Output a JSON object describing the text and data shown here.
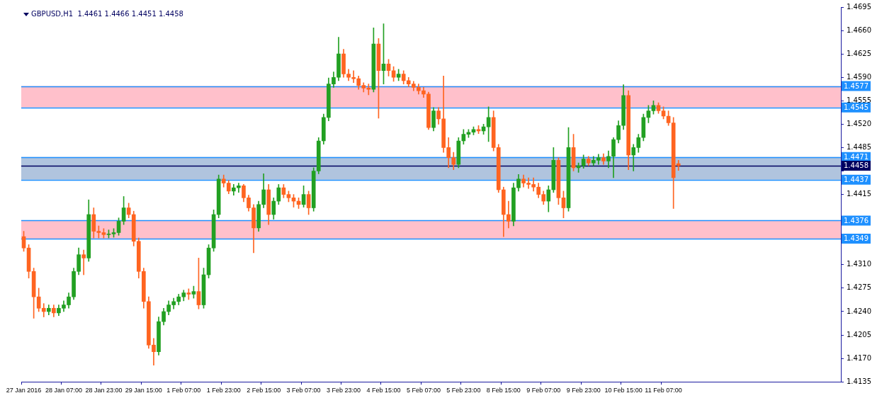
{
  "chart_data": {
    "type": "candlestick",
    "title": "GBPUSD,H1  1.4461 1.4466 1.4451 1.4458",
    "categories": [
      "27 Jan 2016",
      null,
      null,
      null,
      null,
      null,
      null,
      null,
      "28 Jan 07:00",
      null,
      null,
      null,
      null,
      null,
      null,
      null,
      "28 Jan 23:00",
      null,
      null,
      null,
      null,
      null,
      null,
      null,
      "29 Jan 15:00",
      null,
      null,
      null,
      null,
      null,
      null,
      null,
      "1 Feb 07:00",
      null,
      null,
      null,
      null,
      null,
      null,
      null,
      "1 Feb 23:00",
      null,
      null,
      null,
      null,
      null,
      null,
      null,
      "2 Feb 15:00",
      null,
      null,
      null,
      null,
      null,
      null,
      null,
      "3 Feb 07:00",
      null,
      null,
      null,
      null,
      null,
      null,
      null,
      "3 Feb 23:00",
      null,
      null,
      null,
      null,
      null,
      null,
      null,
      "4 Feb 15:00",
      null,
      null,
      null,
      null,
      null,
      null,
      null,
      "5 Feb 07:00",
      null,
      null,
      null,
      null,
      null,
      null,
      null,
      "5 Feb 23:00",
      null,
      null,
      null,
      null,
      null,
      null,
      null,
      "8 Feb 15:00",
      null,
      null,
      null,
      null,
      null,
      null,
      null,
      "9 Feb 07:00",
      null,
      null,
      null,
      null,
      null,
      null,
      null,
      "9 Feb 23:00",
      null,
      null,
      null,
      null,
      null,
      null,
      null,
      "10 Feb 15:00",
      null,
      null,
      null,
      null,
      null,
      null,
      null,
      "11 Feb 07:00",
      null,
      null,
      null,
      null,
      null,
      null,
      null,
      null,
      null,
      null,
      null,
      null,
      null,
      null,
      null,
      null,
      null,
      null,
      null,
      null,
      null,
      null,
      null,
      null,
      null,
      null,
      null,
      null,
      null,
      null,
      null,
      null,
      null,
      null,
      null
    ],
    "ohlc": [
      [
        1.4352,
        1.436,
        1.433,
        1.4335
      ],
      [
        1.4335,
        1.434,
        1.429,
        1.43
      ],
      [
        1.43,
        1.4305,
        1.423,
        1.4262
      ],
      [
        1.4262,
        1.4275,
        1.424,
        1.4245
      ],
      [
        1.4245,
        1.4252,
        1.4232,
        1.424
      ],
      [
        1.424,
        1.425,
        1.4235,
        1.4245
      ],
      [
        1.4245,
        1.425,
        1.4232,
        1.4238
      ],
      [
        1.4238,
        1.425,
        1.4234,
        1.4245
      ],
      [
        1.4245,
        1.4256,
        1.424,
        1.425
      ],
      [
        1.425,
        1.4268,
        1.4245,
        1.4262
      ],
      [
        1.4262,
        1.4305,
        1.4258,
        1.43
      ],
      [
        1.43,
        1.4335,
        1.4295,
        1.4325
      ],
      [
        1.4325,
        1.4332,
        1.4295,
        1.432
      ],
      [
        1.432,
        1.4407,
        1.4315,
        1.4385
      ],
      [
        1.4385,
        1.4395,
        1.435,
        1.436
      ],
      [
        1.436,
        1.4368,
        1.435,
        1.4358
      ],
      [
        1.4358,
        1.4364,
        1.435,
        1.4355
      ],
      [
        1.4355,
        1.4362,
        1.435,
        1.4356
      ],
      [
        1.4356,
        1.4364,
        1.4351,
        1.4358
      ],
      [
        1.4358,
        1.438,
        1.4354,
        1.4375
      ],
      [
        1.4375,
        1.4412,
        1.437,
        1.4395
      ],
      [
        1.4395,
        1.4402,
        1.438,
        1.4385
      ],
      [
        1.4385,
        1.439,
        1.4338,
        1.4345
      ],
      [
        1.4345,
        1.435,
        1.429,
        1.43
      ],
      [
        1.43,
        1.4305,
        1.4245,
        1.4255
      ],
      [
        1.4255,
        1.4262,
        1.4185,
        1.419
      ],
      [
        1.419,
        1.42,
        1.416,
        1.418
      ],
      [
        1.418,
        1.4232,
        1.4175,
        1.4225
      ],
      [
        1.4225,
        1.4245,
        1.422,
        1.424
      ],
      [
        1.424,
        1.4256,
        1.4235,
        1.425
      ],
      [
        1.425,
        1.426,
        1.4244,
        1.4255
      ],
      [
        1.4255,
        1.4266,
        1.425,
        1.4262
      ],
      [
        1.4262,
        1.4272,
        1.4256,
        1.4268
      ],
      [
        1.4268,
        1.4274,
        1.4258,
        1.4266
      ],
      [
        1.4266,
        1.4278,
        1.426,
        1.427
      ],
      [
        1.427,
        1.432,
        1.4244,
        1.425
      ],
      [
        1.425,
        1.4305,
        1.4245,
        1.4295
      ],
      [
        1.4295,
        1.434,
        1.429,
        1.4335
      ],
      [
        1.4335,
        1.4392,
        1.433,
        1.4385
      ],
      [
        1.4385,
        1.4444,
        1.438,
        1.4438
      ],
      [
        1.4438,
        1.4444,
        1.4426,
        1.4432
      ],
      [
        1.4432,
        1.4436,
        1.4416,
        1.442
      ],
      [
        1.442,
        1.443,
        1.4414,
        1.4425
      ],
      [
        1.4425,
        1.4432,
        1.4418,
        1.4428
      ],
      [
        1.4428,
        1.443,
        1.4404,
        1.441
      ],
      [
        1.441,
        1.4414,
        1.439,
        1.4395
      ],
      [
        1.4395,
        1.44,
        1.4328,
        1.4365
      ],
      [
        1.4365,
        1.4405,
        1.436,
        1.44
      ],
      [
        1.44,
        1.4446,
        1.4395,
        1.4422
      ],
      [
        1.4422,
        1.443,
        1.437,
        1.4385
      ],
      [
        1.4385,
        1.441,
        1.4378,
        1.4405
      ],
      [
        1.4405,
        1.443,
        1.44,
        1.4425
      ],
      [
        1.4425,
        1.443,
        1.441,
        1.4415
      ],
      [
        1.4415,
        1.442,
        1.4404,
        1.441
      ],
      [
        1.441,
        1.4415,
        1.4396,
        1.4405
      ],
      [
        1.4405,
        1.441,
        1.4394,
        1.44
      ],
      [
        1.44,
        1.4428,
        1.4396,
        1.4415
      ],
      [
        1.4415,
        1.442,
        1.4385,
        1.4395
      ],
      [
        1.4395,
        1.4455,
        1.439,
        1.445
      ],
      [
        1.445,
        1.45,
        1.4446,
        1.4495
      ],
      [
        1.4495,
        1.4535,
        1.449,
        1.453
      ],
      [
        1.453,
        1.4589,
        1.4525,
        1.458
      ],
      [
        1.458,
        1.4598,
        1.4575,
        1.459
      ],
      [
        1.459,
        1.465,
        1.4585,
        1.4625
      ],
      [
        1.4625,
        1.4632,
        1.459,
        1.4595
      ],
      [
        1.4595,
        1.4602,
        1.4585,
        1.459
      ],
      [
        1.459,
        1.46,
        1.4582,
        1.4588
      ],
      [
        1.4588,
        1.4592,
        1.4572,
        1.4578
      ],
      [
        1.4578,
        1.4582,
        1.4568,
        1.4574
      ],
      [
        1.4574,
        1.458,
        1.4564,
        1.4572
      ],
      [
        1.4572,
        1.4664,
        1.4568,
        1.464
      ],
      [
        1.464,
        1.4648,
        1.4529,
        1.46
      ],
      [
        1.46,
        1.467,
        1.458,
        1.461
      ],
      [
        1.461,
        1.4617,
        1.4592,
        1.46
      ],
      [
        1.46,
        1.4606,
        1.4584,
        1.459
      ],
      [
        1.459,
        1.4602,
        1.4585,
        1.4595
      ],
      [
        1.4595,
        1.46,
        1.458,
        1.4585
      ],
      [
        1.4585,
        1.459,
        1.4576,
        1.458
      ],
      [
        1.458,
        1.4584,
        1.457,
        1.4575
      ],
      [
        1.4575,
        1.458,
        1.4565,
        1.457
      ],
      [
        1.457,
        1.4575,
        1.456,
        1.4565
      ],
      [
        1.4565,
        1.4568,
        1.4512,
        1.4515
      ],
      [
        1.4515,
        1.4545,
        1.451,
        1.454
      ],
      [
        1.454,
        1.4545,
        1.452,
        1.4528
      ],
      [
        1.4528,
        1.4592,
        1.4478,
        1.4485
      ],
      [
        1.4485,
        1.45,
        1.4455,
        1.447
      ],
      [
        1.447,
        1.4478,
        1.4452,
        1.446
      ],
      [
        1.446,
        1.45,
        1.4455,
        1.4495
      ],
      [
        1.4495,
        1.4512,
        1.449,
        1.4505
      ],
      [
        1.4505,
        1.4512,
        1.45,
        1.4508
      ],
      [
        1.4508,
        1.4516,
        1.4504,
        1.4512
      ],
      [
        1.4512,
        1.4518,
        1.4506,
        1.451
      ],
      [
        1.451,
        1.452,
        1.4505,
        1.4516
      ],
      [
        1.4516,
        1.4546,
        1.4494,
        1.453
      ],
      [
        1.453,
        1.454,
        1.448,
        1.4485
      ],
      [
        1.4485,
        1.449,
        1.4418,
        1.4422
      ],
      [
        1.4422,
        1.4426,
        1.4352,
        1.4385
      ],
      [
        1.4385,
        1.4405,
        1.4365,
        1.4375
      ],
      [
        1.4375,
        1.4432,
        1.4368,
        1.4425
      ],
      [
        1.4425,
        1.4445,
        1.442,
        1.4438
      ],
      [
        1.4438,
        1.4444,
        1.4426,
        1.4432
      ],
      [
        1.4432,
        1.444,
        1.4424,
        1.443
      ],
      [
        1.443,
        1.444,
        1.442,
        1.4426
      ],
      [
        1.4426,
        1.4432,
        1.441,
        1.4415
      ],
      [
        1.4415,
        1.442,
        1.44,
        1.4405
      ],
      [
        1.4405,
        1.4428,
        1.4389,
        1.4422
      ],
      [
        1.4422,
        1.4485,
        1.4418,
        1.4466
      ],
      [
        1.4466,
        1.447,
        1.44,
        1.441
      ],
      [
        1.441,
        1.442,
        1.438,
        1.4395
      ],
      [
        1.4395,
        1.4515,
        1.439,
        1.4485
      ],
      [
        1.4485,
        1.4505,
        1.445,
        1.4455
      ],
      [
        1.4455,
        1.4462,
        1.4448,
        1.4458
      ],
      [
        1.4458,
        1.4474,
        1.4454,
        1.4468
      ],
      [
        1.4468,
        1.4472,
        1.4458,
        1.4462
      ],
      [
        1.4462,
        1.4472,
        1.4458,
        1.4466
      ],
      [
        1.4466,
        1.4475,
        1.446,
        1.447
      ],
      [
        1.447,
        1.4476,
        1.446,
        1.4465
      ],
      [
        1.4465,
        1.448,
        1.4455,
        1.4472
      ],
      [
        1.4472,
        1.45,
        1.444,
        1.4497
      ],
      [
        1.4497,
        1.4525,
        1.4492,
        1.4518
      ],
      [
        1.4518,
        1.4579,
        1.4512,
        1.4563
      ],
      [
        1.4563,
        1.457,
        1.4452,
        1.4474
      ],
      [
        1.4474,
        1.449,
        1.445,
        1.4485
      ],
      [
        1.4485,
        1.4505,
        1.4478,
        1.45
      ],
      [
        1.45,
        1.4535,
        1.4495,
        1.453
      ],
      [
        1.453,
        1.4548,
        1.4522,
        1.454
      ],
      [
        1.454,
        1.4555,
        1.4535,
        1.4548
      ],
      [
        1.4548,
        1.4552,
        1.4536,
        1.454
      ],
      [
        1.454,
        1.4546,
        1.4528,
        1.4532
      ],
      [
        1.4532,
        1.454,
        1.4518,
        1.4522
      ],
      [
        1.4522,
        1.453,
        1.4394,
        1.444
      ],
      [
        1.4461,
        1.4466,
        1.4451,
        1.4458
      ],
      null,
      null,
      null,
      null,
      null,
      null,
      null,
      null,
      null,
      null,
      null,
      null,
      null,
      null,
      null,
      null,
      null,
      null,
      null,
      null,
      null,
      null,
      null,
      null,
      null,
      null,
      null,
      null,
      null,
      null,
      null,
      null
    ],
    "colors": [
      "#ff6420",
      "#ff6420",
      "#ff6420",
      "#ff6420",
      "#ff6420",
      "#22a022",
      "#ff6420",
      "#22a022",
      "#22a022",
      "#22a022",
      "#22a022",
      "#22a022",
      "#ff6420",
      "#22a022",
      "#ff6420",
      "#ff6420",
      "#ff6420",
      "#22a022",
      "#22a022",
      "#22a022",
      "#22a022",
      "#ff6420",
      "#ff6420",
      "#ff6420",
      "#ff6420",
      "#ff6420",
      "#ff6420",
      "#22a022",
      "#22a022",
      "#22a022",
      "#22a022",
      "#22a022",
      "#22a022",
      "#ff6420",
      "#22a022",
      "#ff6420",
      "#22a022",
      "#22a022",
      "#22a022",
      "#22a022",
      "#ff6420",
      "#ff6420",
      "#22a022",
      "#22a022",
      "#ff6420",
      "#ff6420",
      "#ff6420",
      "#22a022",
      "#22a022",
      "#ff6420",
      "#22a022",
      "#22a022",
      "#ff6420",
      "#ff6420",
      "#ff6420",
      "#ff6420",
      "#22a022",
      "#ff6420",
      "#22a022",
      "#22a022",
      "#22a022",
      "#22a022",
      "#22a022",
      "#22a022",
      "#ff6420",
      "#ff6420",
      "#ff6420",
      "#ff6420",
      "#ff6420",
      "#ff6420",
      "#22a022",
      "#ff6420",
      "#22a022",
      "#ff6420",
      "#ff6420",
      "#22a022",
      "#ff6420",
      "#ff6420",
      "#ff6420",
      "#ff6420",
      "#ff6420",
      "#ff6420",
      "#22a022",
      "#ff6420",
      "#ff6420",
      "#ff6420",
      "#ff6420",
      "#22a022",
      "#22a022",
      "#22a022",
      "#22a022",
      "#ff6420",
      "#22a022",
      "#22a022",
      "#ff6420",
      "#ff6420",
      "#ff6420",
      "#ff6420",
      "#22a022",
      "#22a022",
      "#ff6420",
      "#ff6420",
      "#ff6420",
      "#ff6420",
      "#ff6420",
      "#22a022",
      "#22a022",
      "#ff6420",
      "#ff6420",
      "#22a022",
      "#ff6420",
      "#22a022",
      "#22a022",
      "#ff6420",
      "#22a022",
      "#22a022",
      "#ff6420",
      "#22a022",
      "#22a022",
      "#22a022",
      "#22a022",
      "#ff6420",
      "#22a022",
      "#22a022",
      "#22a022",
      "#22a022",
      "#22a022",
      "#ff6420",
      "#ff6420",
      "#ff6420",
      "#ff6420",
      "#ff6420",
      null,
      null,
      null,
      null,
      null,
      null,
      null,
      null,
      null,
      null,
      null,
      null,
      null,
      null,
      null,
      null,
      null,
      null,
      null,
      null,
      null,
      null,
      null,
      null,
      null,
      null,
      null,
      null,
      null,
      null,
      null,
      null
    ],
    "ylim": [
      1.4135,
      1.4695
    ],
    "yticks": [
      1.4135,
      {
        "value": 1.417,
        "label": "1.4170"
      },
      1.4205,
      {
        "value": 1.424,
        "label": "1.4240"
      },
      1.4275,
      {
        "value": 1.431,
        "label": "1.4310"
      },
      {
        "value": 1.4345,
        "label": null
      },
      {
        "value": 1.438,
        "label": null
      },
      1.4415,
      {
        "value": 1.445,
        "label": null
      },
      1.4485,
      {
        "value": 1.452,
        "label": "1.4520"
      },
      1.4555,
      {
        "value": 1.459,
        "label": "1.4590"
      },
      1.4625,
      {
        "value": 1.466,
        "label": "1.4660"
      },
      1.4695
    ],
    "bands": [
      {
        "axis": "y",
        "from": 1.4545,
        "to": 1.4577,
        "color": "#ffc0cb"
      },
      {
        "axis": "y",
        "from": 1.4349,
        "to": 1.4376,
        "color": "#ffc0cb"
      },
      {
        "axis": "y",
        "from": 1.4437,
        "to": 1.4471,
        "color": "#b0c4de"
      }
    ],
    "ref_lines": [
      {
        "axis": "y",
        "value": 1.4577,
        "label": "1.4577",
        "color": "#1e90ff"
      },
      {
        "axis": "y",
        "value": 1.4545,
        "label": "1.4545",
        "color": "#1e90ff"
      },
      {
        "axis": "y",
        "value": 1.4471,
        "label": "1.4471",
        "color": "#1e90ff"
      },
      {
        "axis": "y",
        "value": 1.4437,
        "label": "1.4437",
        "color": "#1e90ff"
      },
      {
        "axis": "y",
        "value": 1.4376,
        "label": "1.4376",
        "color": "#1e90ff"
      },
      {
        "axis": "y",
        "value": 1.4349,
        "label": "1.4349",
        "color": "#1e90ff"
      },
      {
        "axis": "y",
        "value": 1.4458,
        "label": "1.4458",
        "color": "#000060"
      }
    ]
  }
}
